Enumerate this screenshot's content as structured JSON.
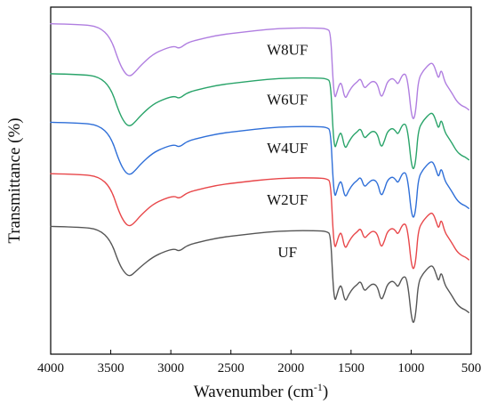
{
  "chart_data": {
    "type": "line",
    "xlabel": "Wavenumber (cm",
    "xlabel_superscript": "-1",
    "xlabel_suffix": ")",
    "ylabel": "Transmittance (%)",
    "xlim": [
      4000,
      500
    ],
    "x_reversed": true,
    "x_ticks": [
      4000,
      3500,
      3000,
      2500,
      2000,
      1500,
      1000,
      500
    ],
    "y_ticks_shown": false,
    "grid": false,
    "legend": "none",
    "series": [
      {
        "name": "UF",
        "color": "#555555",
        "x": [
          4000,
          3750,
          3600,
          3500,
          3430,
          3380,
          3340,
          3300,
          3250,
          3150,
          3050,
          2970,
          2930,
          2870,
          2800,
          2600,
          2400,
          2200,
          2000,
          1800,
          1700,
          1670,
          1650,
          1635,
          1620,
          1600,
          1580,
          1550,
          1520,
          1480,
          1450,
          1420,
          1390,
          1360,
          1320,
          1280,
          1250,
          1220,
          1200,
          1160,
          1130,
          1110,
          1080,
          1060,
          1040,
          1020,
          1000,
          980,
          960,
          940,
          900,
          880,
          860,
          830,
          810,
          790,
          770,
          750,
          720,
          690,
          660,
          620,
          580,
          550,
          520
        ],
        "values": [
          72,
          71.5,
          70,
          62,
          45,
          38,
          36,
          39,
          43,
          50,
          54,
          56,
          54,
          58,
          60,
          64,
          66,
          68,
          69,
          69,
          68.5,
          66,
          30,
          18,
          22,
          28,
          30,
          17,
          23,
          28,
          30,
          33,
          25,
          28,
          31,
          29,
          18,
          24,
          30,
          33,
          31,
          28,
          34,
          36,
          35,
          25,
          8,
          1,
          10,
          32,
          38,
          40,
          42,
          44,
          42,
          37,
          32,
          40,
          30,
          26,
          22,
          16,
          13,
          12,
          10
        ]
      },
      {
        "name": "W2UF",
        "color": "#e8474a",
        "x": [
          4000,
          3750,
          3600,
          3500,
          3430,
          3380,
          3340,
          3300,
          3250,
          3150,
          3050,
          2970,
          2930,
          2870,
          2800,
          2600,
          2400,
          2200,
          2000,
          1800,
          1700,
          1670,
          1650,
          1635,
          1620,
          1600,
          1580,
          1550,
          1520,
          1480,
          1450,
          1420,
          1390,
          1360,
          1320,
          1280,
          1250,
          1220,
          1200,
          1160,
          1130,
          1110,
          1080,
          1060,
          1040,
          1020,
          1000,
          980,
          960,
          940,
          900,
          880,
          860,
          830,
          810,
          790,
          770,
          750,
          720,
          690,
          660,
          620,
          580,
          550,
          520
        ],
        "values": [
          110,
          109.5,
          108,
          100,
          82,
          74,
          72,
          75,
          80,
          88,
          92,
          94,
          92,
          96,
          98,
          102,
          104,
          106,
          107,
          107,
          106.5,
          104,
          68,
          56,
          60,
          66,
          68,
          55,
          61,
          66,
          68,
          71,
          63,
          66,
          69,
          67,
          56,
          62,
          68,
          71,
          69,
          66,
          72,
          74,
          73,
          63,
          46,
          40,
          48,
          70,
          76,
          78,
          80,
          82,
          80,
          75,
          70,
          78,
          68,
          64,
          60,
          54,
          51,
          50,
          48
        ]
      },
      {
        "name": "W4UF",
        "color": "#2f6fd8",
        "x": [
          4000,
          3750,
          3600,
          3500,
          3430,
          3380,
          3340,
          3300,
          3250,
          3150,
          3050,
          2970,
          2930,
          2870,
          2800,
          2600,
          2400,
          2200,
          2000,
          1800,
          1700,
          1670,
          1650,
          1635,
          1620,
          1600,
          1580,
          1550,
          1520,
          1480,
          1450,
          1420,
          1390,
          1360,
          1320,
          1280,
          1250,
          1220,
          1200,
          1160,
          1130,
          1110,
          1080,
          1060,
          1040,
          1020,
          1000,
          980,
          960,
          940,
          900,
          880,
          860,
          830,
          810,
          790,
          770,
          750,
          720,
          690,
          660,
          620,
          580,
          550,
          520
        ],
        "values": [
          147,
          146.5,
          145,
          137,
          119,
          111,
          109,
          112,
          117,
          125,
          129,
          131,
          129,
          133,
          135,
          139,
          141,
          143,
          144,
          144,
          143.5,
          141,
          105,
          93,
          97,
          103,
          105,
          92,
          98,
          103,
          105,
          108,
          100,
          103,
          106,
          104,
          93,
          99,
          105,
          108,
          106,
          103,
          109,
          111,
          110,
          100,
          83,
          77,
          85,
          107,
          113,
          115,
          117,
          119,
          117,
          112,
          107,
          115,
          105,
          101,
          97,
          91,
          88,
          87,
          85
        ]
      },
      {
        "name": "W6UF",
        "color": "#2aa46a",
        "x": [
          4000,
          3750,
          3600,
          3500,
          3430,
          3380,
          3340,
          3300,
          3250,
          3150,
          3050,
          2970,
          2930,
          2870,
          2800,
          2600,
          2400,
          2200,
          2000,
          1800,
          1700,
          1670,
          1650,
          1635,
          1620,
          1600,
          1580,
          1550,
          1520,
          1480,
          1450,
          1420,
          1390,
          1360,
          1320,
          1280,
          1250,
          1220,
          1200,
          1160,
          1130,
          1110,
          1080,
          1060,
          1040,
          1020,
          1000,
          980,
          960,
          940,
          900,
          880,
          860,
          830,
          810,
          790,
          770,
          750,
          720,
          690,
          660,
          620,
          580,
          550,
          520
        ],
        "values": [
          182,
          181.5,
          180,
          172,
          154,
          146,
          144,
          147,
          152,
          160,
          164,
          166,
          164,
          168,
          170,
          174,
          176,
          178,
          179,
          179,
          178.5,
          176,
          140,
          128,
          132,
          138,
          140,
          127,
          133,
          138,
          140,
          143,
          135,
          138,
          141,
          139,
          128,
          134,
          140,
          143,
          141,
          138,
          144,
          146,
          145,
          135,
          118,
          112,
          120,
          142,
          148,
          150,
          152,
          154,
          152,
          147,
          142,
          150,
          140,
          136,
          132,
          126,
          123,
          122,
          120
        ]
      },
      {
        "name": "W8UF",
        "color": "#b07ee0",
        "x": [
          4000,
          3750,
          3600,
          3500,
          3430,
          3380,
          3340,
          3300,
          3250,
          3150,
          3050,
          2970,
          2930,
          2870,
          2800,
          2600,
          2400,
          2200,
          2000,
          1800,
          1700,
          1670,
          1650,
          1635,
          1620,
          1600,
          1580,
          1550,
          1520,
          1480,
          1450,
          1420,
          1390,
          1360,
          1320,
          1280,
          1250,
          1220,
          1200,
          1160,
          1130,
          1110,
          1080,
          1060,
          1040,
          1020,
          1000,
          980,
          960,
          940,
          900,
          880,
          860,
          830,
          810,
          790,
          770,
          750,
          720,
          690,
          660,
          620,
          580,
          550,
          520
        ],
        "values": [
          218,
          217.5,
          216,
          208,
          190,
          182,
          180,
          183,
          188,
          196,
          200,
          202,
          200,
          204,
          206,
          210,
          212,
          214,
          215,
          215,
          214.5,
          212,
          176,
          164,
          168,
          174,
          176,
          163,
          169,
          174,
          176,
          179,
          171,
          174,
          177,
          175,
          164,
          170,
          176,
          179,
          177,
          174,
          180,
          182,
          181,
          171,
          154,
          148,
          156,
          178,
          184,
          186,
          188,
          190,
          188,
          183,
          178,
          186,
          176,
          172,
          168,
          162,
          159,
          158,
          156
        ]
      }
    ],
    "ylim": [
      -20,
      230
    ]
  }
}
